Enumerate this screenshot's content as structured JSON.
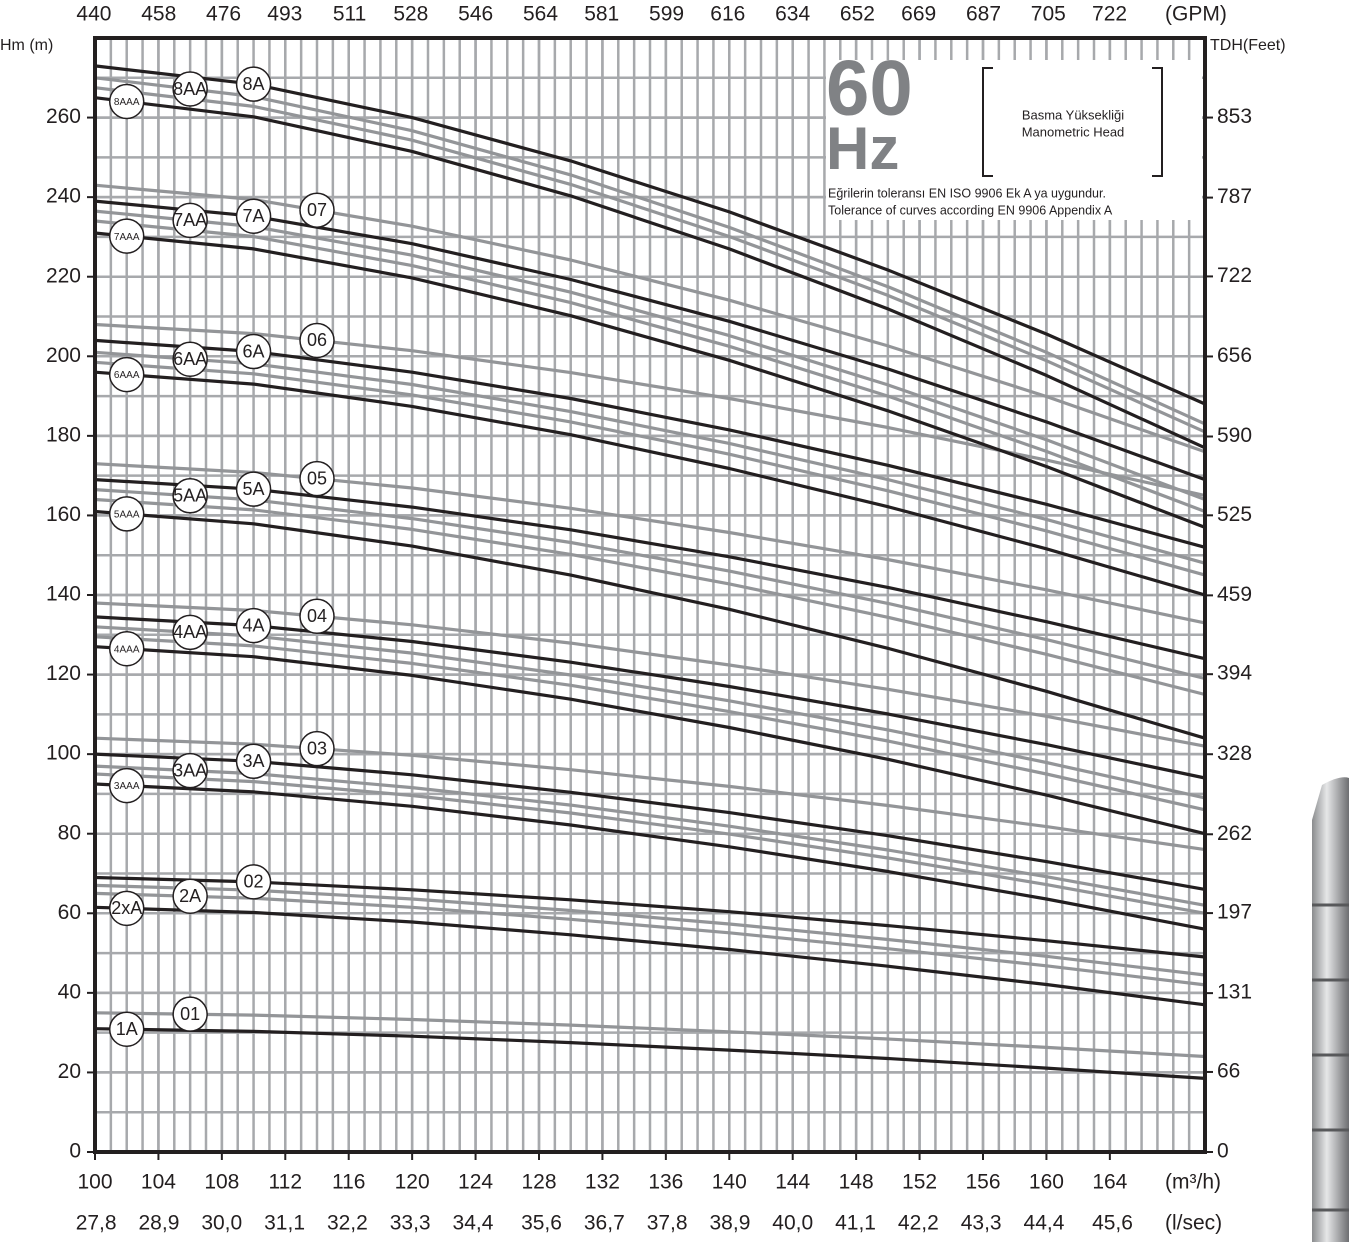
{
  "chart_data": {
    "type": "line",
    "ylabel": "Hm (m)",
    "y2label": "TDH(Feet)",
    "x2label": "(GPM)",
    "xlabel": "(m³/h)",
    "x3label": "(l/sec)",
    "annotations": [
      "60",
      "Hz",
      "Basma Yüksekliği",
      "Manometric Head",
      "Eğrilerin toleransı EN ISO 9906 Ek A ya uygundur.",
      "Tolerance of curves according EN 9906 Appendix A"
    ],
    "xlim": [
      100,
      170
    ],
    "xticks": [
      100,
      104,
      108,
      112,
      116,
      120,
      124,
      128,
      132,
      136,
      140,
      144,
      148,
      152,
      156,
      160,
      164
    ],
    "ylim": [
      0,
      280
    ],
    "yticks": [
      0,
      20,
      40,
      60,
      80,
      100,
      120,
      140,
      160,
      180,
      200,
      220,
      240,
      260
    ],
    "y2lim": [
      0,
      918.6
    ],
    "y2ticks": [
      0,
      66,
      131,
      197,
      262,
      328,
      394,
      459,
      525,
      590,
      656,
      722,
      787,
      853
    ],
    "x2lim": [
      440.3,
      748.5
    ],
    "x2ticks": [
      440,
      458,
      476,
      493,
      511,
      528,
      546,
      564,
      581,
      599,
      616,
      634,
      652,
      669,
      687,
      705,
      722
    ],
    "x3lim": [
      27.78,
      47.22
    ],
    "x3ticks": [
      {
        "value": 27.8,
        "label": "27,8"
      },
      {
        "value": 28.9,
        "label": "28,9"
      },
      {
        "value": 30.0,
        "label": "30,0"
      },
      {
        "value": 31.1,
        "label": "31,1"
      },
      {
        "value": 32.2,
        "label": "32,2"
      },
      {
        "value": 33.3,
        "label": "33,3"
      },
      {
        "value": 34.4,
        "label": "34,4"
      },
      {
        "value": 35.6,
        "label": "35,6"
      },
      {
        "value": 36.7,
        "label": "36,7"
      },
      {
        "value": 37.8,
        "label": "37,8"
      },
      {
        "value": 38.9,
        "label": "38,9"
      },
      {
        "value": 40.0,
        "label": "40,0"
      },
      {
        "value": 41.1,
        "label": "41,1"
      },
      {
        "value": 42.2,
        "label": "42,2"
      },
      {
        "value": 43.3,
        "label": "43,3"
      },
      {
        "value": 44.4,
        "label": "44,4"
      },
      {
        "value": 45.6,
        "label": "45,6"
      }
    ],
    "grid": {
      "x_step": 1,
      "y_step": 10,
      "color": "#a7a9ac"
    },
    "x": [
      100,
      110,
      120,
      130,
      140,
      150,
      160,
      170
    ],
    "series": [
      {
        "name": "01",
        "color": "#939598",
        "values": [
          35,
          34.4,
          33.3,
          31.9,
          30.2,
          28.4,
          26.3,
          24
        ]
      },
      {
        "name": "1A",
        "color": "#231f20",
        "values": [
          31,
          30.3,
          29.1,
          27.5,
          25.6,
          23.5,
          21.1,
          18.5
        ]
      },
      {
        "name": "02",
        "color": "#231f20",
        "values": [
          69,
          67.9,
          65.9,
          63.4,
          60.4,
          56.9,
          53.1,
          49
        ]
      },
      {
        "color": "#939598",
        "values": [
          67,
          65.8,
          63.6,
          60.7,
          57.3,
          53.4,
          49.2,
          44.5
        ]
      },
      {
        "name": "2A",
        "color": "#939598",
        "values": [
          65,
          63.8,
          61.5,
          58.5,
          55.1,
          51.1,
          46.8,
          42
        ]
      },
      {
        "name": "2xA",
        "color": "#231f20",
        "values": [
          61.5,
          60.2,
          57.8,
          54.6,
          50.9,
          46.7,
          42.1,
          37
        ]
      },
      {
        "name": "03",
        "color": "#939598",
        "values": [
          104,
          102.5,
          99.7,
          96.1,
          91.9,
          87.1,
          81.8,
          76
        ]
      },
      {
        "name": "3A",
        "color": "#231f20",
        "values": [
          100,
          98.2,
          94.8,
          90.4,
          85.3,
          79.5,
          73,
          66
        ]
      },
      {
        "name": "3AA",
        "color": "#939598",
        "values": [
          97,
          95.1,
          91.6,
          87.2,
          81.9,
          75.9,
          69.2,
          62
        ]
      },
      {
        "color": "#939598",
        "values": [
          95,
          93.1,
          89.6,
          85.2,
          79.9,
          73.9,
          67.2,
          60
        ]
      },
      {
        "name": "3AAA",
        "color": "#231f20",
        "values": [
          92.5,
          90.5,
          86.9,
          82.2,
          76.7,
          70.5,
          63.6,
          56
        ]
      },
      {
        "name": "04",
        "color": "#939598",
        "values": [
          138,
          136.1,
          132.5,
          127.9,
          122.4,
          116.3,
          109.5,
          102
        ]
      },
      {
        "name": "4A",
        "color": "#231f20",
        "values": [
          134.5,
          132.3,
          128.3,
          123.1,
          117,
          110.1,
          102.4,
          94
        ]
      },
      {
        "name": "4AA",
        "color": "#939598",
        "values": [
          132,
          129.7,
          125.4,
          119.9,
          113.4,
          106.1,
          97.9,
          89
        ]
      },
      {
        "color": "#939598",
        "values": [
          129.5,
          127.2,
          122.8,
          117.3,
          110.7,
          103.3,
          95,
          86
        ]
      },
      {
        "name": "4AAA",
        "color": "#231f20",
        "values": [
          127,
          124.5,
          119.8,
          113.8,
          106.7,
          98.7,
          89.7,
          80
        ]
      },
      {
        "name": "05",
        "color": "#939598",
        "values": [
          173,
          170.8,
          166.9,
          161.8,
          155.7,
          148.9,
          141.3,
          133
        ]
      },
      {
        "name": "5A",
        "color": "#231f20",
        "values": [
          169,
          166.6,
          162.1,
          156.4,
          149.6,
          141.9,
          133.3,
          124
        ]
      },
      {
        "name": "5AA",
        "color": "#939598",
        "values": [
          166.5,
          163.9,
          159.2,
          153.2,
          146,
          137.9,
          128.8,
          119
        ]
      },
      {
        "color": "#939598",
        "values": [
          164,
          161.4,
          156.5,
          150.2,
          142.8,
          134.4,
          125.1,
          115
        ]
      },
      {
        "name": "5AAA",
        "color": "#231f20",
        "values": [
          161,
          157.9,
          152.3,
          145,
          136.4,
          126.6,
          115.8,
          104
        ]
      },
      {
        "name": "06",
        "color": "#939598",
        "values": [
          208,
          205.7,
          201.4,
          195.9,
          189.4,
          182.1,
          173.9,
          165
        ]
      },
      {
        "name": "6A",
        "color": "#231f20",
        "values": [
          204,
          201.2,
          196,
          189.4,
          181.5,
          172.6,
          162.8,
          152
        ]
      },
      {
        "name": "6AA",
        "color": "#939598",
        "values": [
          201,
          198.1,
          192.9,
          186.1,
          178.1,
          169,
          159,
          148
        ]
      },
      {
        "color": "#939598",
        "values": [
          198.5,
          195.6,
          190.3,
          183.5,
          175.4,
          166.2,
          156.1,
          145
        ]
      },
      {
        "name": "6AAA",
        "color": "#231f20",
        "values": [
          196,
          193,
          187.4,
          180.3,
          171.8,
          162.2,
          151.6,
          140
        ]
      },
      {
        "name": "07",
        "color": "#939598",
        "values": [
          243,
          239.4,
          232.7,
          224.2,
          214.1,
          202.6,
          189.9,
          176
        ]
      },
      {
        "name": "7A",
        "color": "#231f20",
        "values": [
          239,
          235.2,
          228.3,
          219.3,
          208.8,
          196.8,
          183.5,
          169
        ]
      },
      {
        "name": "7AA",
        "color": "#939598",
        "values": [
          236.5,
          232.6,
          225.4,
          216.1,
          205.2,
          192.8,
          179,
          164
        ]
      },
      {
        "color": "#939598",
        "values": [
          234,
          230.1,
          222.8,
          213.5,
          202.5,
          190,
          176.1,
          161
        ]
      },
      {
        "name": "7AAA",
        "color": "#231f20",
        "values": [
          231,
          227,
          219.7,
          210.2,
          199,
          186.3,
          172.3,
          157
        ]
      },
      {
        "name": "8A",
        "color": "#231f20",
        "values": [
          273,
          268.4,
          260,
          249.1,
          236.3,
          221.7,
          205.6,
          188
        ]
      },
      {
        "name": "8AA",
        "color": "#939598",
        "values": [
          270,
          265.3,
          256.7,
          245.6,
          232.4,
          217.5,
          201,
          183
        ]
      },
      {
        "color": "#939598",
        "values": [
          267.5,
          262.8,
          254.3,
          243.2,
          230.1,
          215.3,
          198.9,
          181
        ]
      },
      {
        "name": "8AAA",
        "color": "#231f20",
        "values": [
          265,
          260.2,
          251.5,
          240.3,
          227,
          211.9,
          195.2,
          177
        ]
      }
    ]
  }
}
